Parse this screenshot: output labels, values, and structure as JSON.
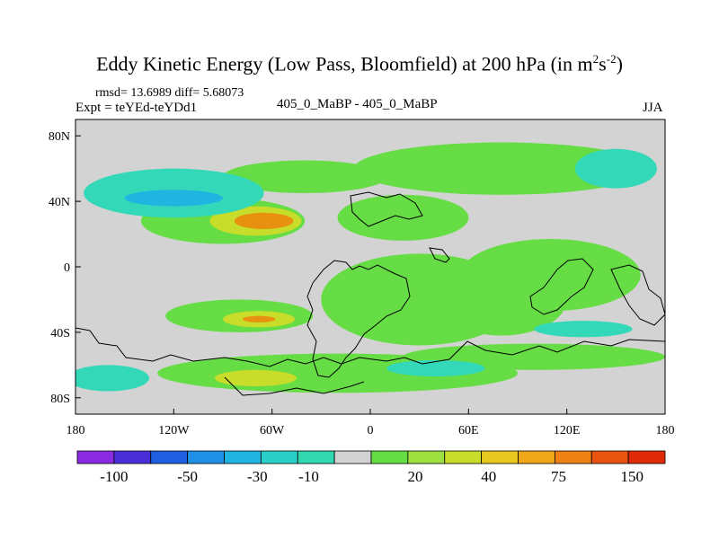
{
  "title": {
    "main": "Eddy Kinetic Energy (Low Pass, Bloomfield) at 200 hPa (in m",
    "sup1": "2",
    "mid": "s",
    "sup2": "-2",
    "end": ")"
  },
  "stats_line": "rmsd= 13.6989 diff= 5.68073",
  "expt_line": "Expt = teYEd-teYDd1",
  "center_label": "405_0_MaBP - 405_0_MaBP",
  "season": "JJA",
  "chart_data": {
    "type": "heatmap",
    "x_ticks": [
      "180",
      "120W",
      "60W",
      "0",
      "60E",
      "120E",
      "180"
    ],
    "y_ticks": [
      "80N",
      "40N",
      "0",
      "40S",
      "80S"
    ],
    "xlim": [
      -180,
      180
    ],
    "ylim": [
      -90,
      90
    ],
    "colorbar": {
      "labels": [
        "-100",
        "-50",
        "-30",
        "-10",
        "20",
        "40",
        "75",
        "150"
      ],
      "colors": [
        "#8a2be2",
        "#4a2fd8",
        "#1f5fe0",
        "#1e90e6",
        "#20b4e0",
        "#2ad0c8",
        "#32d8b0",
        "#d3d3d3",
        "#66dd44",
        "#9ee040",
        "#c8dc2a",
        "#e6c81e",
        "#f0a818",
        "#ee8014",
        "#e85410",
        "#e02a0a"
      ]
    },
    "regions": [
      {
        "level": 20,
        "lon": -90,
        "lat": 28,
        "rx": 50,
        "ry": 14
      },
      {
        "level": 40,
        "lon": -70,
        "lat": 28,
        "rx": 28,
        "ry": 9
      },
      {
        "level": 75,
        "lon": -65,
        "lat": 28,
        "rx": 18,
        "ry": 5
      },
      {
        "level": 20,
        "lon": 20,
        "lat": 30,
        "rx": 40,
        "ry": 14
      },
      {
        "level": 20,
        "lon": 80,
        "lat": 60,
        "rx": 90,
        "ry": 16
      },
      {
        "level": 20,
        "lon": -40,
        "lat": 55,
        "rx": 50,
        "ry": 10
      },
      {
        "level": 20,
        "lon": 30,
        "lat": -20,
        "rx": 60,
        "ry": 28
      },
      {
        "level": 20,
        "lon": 80,
        "lat": -20,
        "rx": 40,
        "ry": 22
      },
      {
        "level": 20,
        "lon": -80,
        "lat": -30,
        "rx": 45,
        "ry": 10
      },
      {
        "level": 40,
        "lon": -68,
        "lat": -32,
        "rx": 22,
        "ry": 5
      },
      {
        "level": 75,
        "lon": -68,
        "lat": -32,
        "rx": 10,
        "ry": 2
      },
      {
        "level": 20,
        "lon": 110,
        "lat": -5,
        "rx": 55,
        "ry": 22
      },
      {
        "level": 20,
        "lon": -20,
        "lat": -65,
        "rx": 110,
        "ry": 12
      },
      {
        "level": 40,
        "lon": -70,
        "lat": -68,
        "rx": 25,
        "ry": 5
      },
      {
        "level": 20,
        "lon": 100,
        "lat": -55,
        "rx": 80,
        "ry": 8
      },
      {
        "level": -10,
        "lon": -120,
        "lat": 45,
        "rx": 55,
        "ry": 15
      },
      {
        "level": -30,
        "lon": -120,
        "lat": 42,
        "rx": 30,
        "ry": 5
      },
      {
        "level": -10,
        "lon": 150,
        "lat": 60,
        "rx": 25,
        "ry": 12
      },
      {
        "level": -10,
        "lon": 130,
        "lat": -38,
        "rx": 30,
        "ry": 5
      },
      {
        "level": -10,
        "lon": -160,
        "lat": -68,
        "rx": 25,
        "ry": 8
      },
      {
        "level": -10,
        "lon": 40,
        "lat": -62,
        "rx": 30,
        "ry": 5
      }
    ]
  }
}
